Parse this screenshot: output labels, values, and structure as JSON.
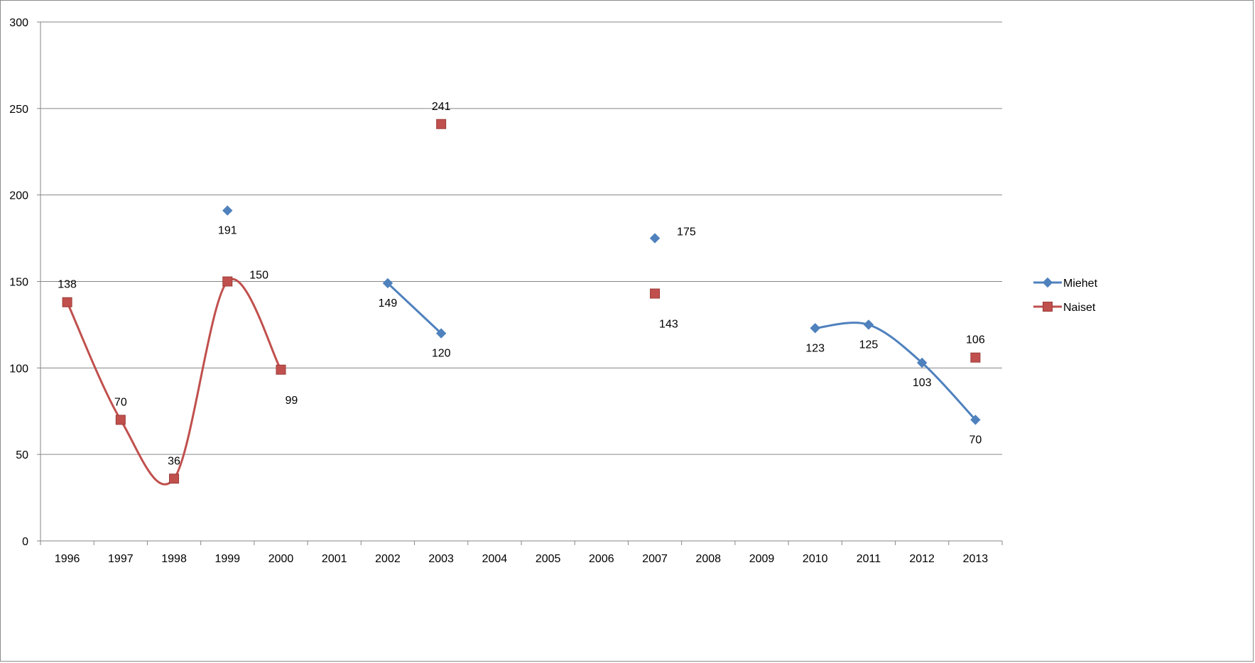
{
  "chart_data": {
    "type": "line",
    "categories": [
      "1996",
      "1997",
      "1998",
      "1999",
      "2000",
      "2001",
      "2002",
      "2003",
      "2004",
      "2005",
      "2006",
      "2007",
      "2008",
      "2009",
      "2010",
      "2011",
      "2012",
      "2013"
    ],
    "ylim": [
      0,
      300
    ],
    "yticks": [
      0,
      50,
      100,
      150,
      200,
      250,
      300
    ],
    "grid": true,
    "legend_position": "right",
    "smoothed": true,
    "series": [
      {
        "name": "Miehet",
        "color": "#4F81BD",
        "marker": "diamond",
        "values": [
          null,
          null,
          null,
          191,
          null,
          null,
          149,
          120,
          null,
          null,
          null,
          175,
          null,
          null,
          123,
          125,
          103,
          70
        ],
        "label_position": [
          "",
          "",
          "",
          "below",
          "",
          "",
          "below",
          "below",
          "",
          "",
          "",
          "right",
          "",
          "",
          "below",
          "below",
          "below",
          "below"
        ]
      },
      {
        "name": "Naiset",
        "color": "#C0504D",
        "marker": "square",
        "values": [
          138,
          70,
          36,
          150,
          99,
          null,
          null,
          241,
          null,
          null,
          null,
          143,
          null,
          null,
          null,
          null,
          null,
          106
        ],
        "label_position": [
          "above",
          "above",
          "above",
          "right",
          "below-right",
          "",
          "",
          "above",
          "",
          "",
          "",
          "below-right",
          "",
          "",
          "",
          "",
          "",
          "above"
        ]
      }
    ]
  }
}
